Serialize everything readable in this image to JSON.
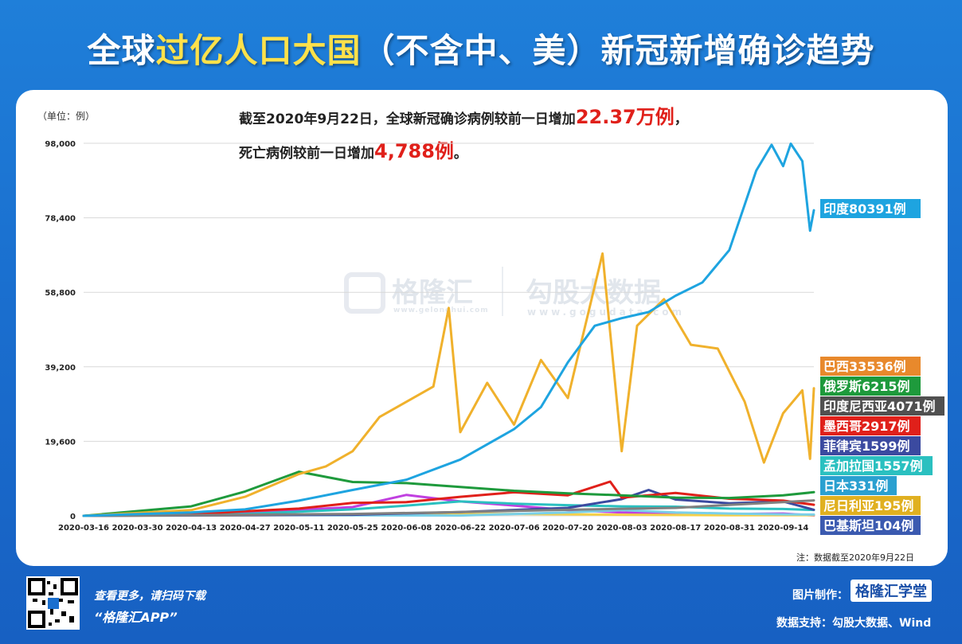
{
  "title": {
    "part1": "全球",
    "highlight": "过亿人口大国",
    "part2": "（不含中、美）新冠新增确诊趋势"
  },
  "unit_label": "（单位：例）",
  "summary": {
    "line1_prefix": "截至2020年9月22日，全球新冠确诊病例较前一日增加",
    "line1_value": "22.37万例",
    "line1_suffix": "，",
    "line2_prefix": "死亡病例较前一日增加",
    "line2_value": "4,788例",
    "line2_suffix": "。"
  },
  "note": "注：数据截至2020年9月22日",
  "footer": {
    "scan_text": "查看更多，请扫码下载",
    "app_text": "“格隆汇APP”",
    "made_by": "图片制作：",
    "brand": "格隆汇学堂",
    "data_support": "数据支持：勾股大数据、Wind"
  },
  "watermark": {
    "left": "格隆汇",
    "right": "勾股大数据",
    "left_url": "www.gelonghui.com",
    "right_url": "www.gogudata.com"
  },
  "colors": {
    "india": "#1ea4e0",
    "brazil": "#f0b12c",
    "russia": "#1e9a3c",
    "indonesia": "#808080",
    "mexico": "#e0201a",
    "philippines": "#3b4aa0",
    "bangladesh": "#2ac0c0",
    "japan": "#7ad0e8",
    "nigeria": "#f5d04a",
    "pakistan": "#c040e0"
  },
  "chart_data": {
    "type": "line",
    "title": "",
    "xlabel": "",
    "ylabel": "（单位：例）",
    "ylim": [
      0,
      98000
    ],
    "y_ticks": [
      "98,000",
      "78,400",
      "58,800",
      "39,200",
      "19,600",
      "0"
    ],
    "y_tick_values": [
      98000,
      78400,
      58800,
      39200,
      19600,
      0
    ],
    "x_ticks": [
      "2020-03-16",
      "2020-03-30",
      "2020-04-13",
      "2020-04-27",
      "2020-05-11",
      "2020-05-25",
      "2020-06-08",
      "2020-06-22",
      "2020-07-06",
      "2020-07-20",
      "2020-08-03",
      "2020-08-17",
      "2020-08-31",
      "2020-09-14"
    ],
    "x_range": [
      "2020-03-16",
      "2020-09-22"
    ],
    "grid": "horizontal",
    "series": [
      {
        "name": "印度",
        "label": "印度80391例",
        "color": "#1ea4e0",
        "points": [
          [
            "2020-03-16",
            0
          ],
          [
            "2020-04-13",
            900
          ],
          [
            "2020-04-27",
            1700
          ],
          [
            "2020-05-11",
            4000
          ],
          [
            "2020-05-25",
            6800
          ],
          [
            "2020-06-08",
            9500
          ],
          [
            "2020-06-22",
            14800
          ],
          [
            "2020-07-06",
            22800
          ],
          [
            "2020-07-13",
            28600
          ],
          [
            "2020-07-20",
            40400
          ],
          [
            "2020-07-27",
            50000
          ],
          [
            "2020-08-03",
            52000
          ],
          [
            "2020-08-10",
            53600
          ],
          [
            "2020-08-17",
            57900
          ],
          [
            "2020-08-24",
            61400
          ],
          [
            "2020-08-31",
            69900
          ],
          [
            "2020-09-07",
            90800
          ],
          [
            "2020-09-11",
            97600
          ],
          [
            "2020-09-14",
            92000
          ],
          [
            "2020-09-16",
            97900
          ],
          [
            "2020-09-19",
            93300
          ],
          [
            "2020-09-21",
            75000
          ],
          [
            "2020-09-22",
            80391
          ]
        ]
      },
      {
        "name": "巴西",
        "label": "巴西33536例",
        "color": "#f0b12c",
        "points": [
          [
            "2020-03-16",
            0
          ],
          [
            "2020-04-13",
            1500
          ],
          [
            "2020-04-27",
            5000
          ],
          [
            "2020-05-11",
            11000
          ],
          [
            "2020-05-18",
            13000
          ],
          [
            "2020-05-25",
            17000
          ],
          [
            "2020-06-01",
            26000
          ],
          [
            "2020-06-08",
            30000
          ],
          [
            "2020-06-15",
            34000
          ],
          [
            "2020-06-19",
            54700
          ],
          [
            "2020-06-22",
            22000
          ],
          [
            "2020-06-29",
            35000
          ],
          [
            "2020-07-06",
            24000
          ],
          [
            "2020-07-13",
            41000
          ],
          [
            "2020-07-20",
            31000
          ],
          [
            "2020-07-29",
            69000
          ],
          [
            "2020-08-03",
            17000
          ],
          [
            "2020-08-07",
            50000
          ],
          [
            "2020-08-14",
            57000
          ],
          [
            "2020-08-21",
            45000
          ],
          [
            "2020-08-28",
            44000
          ],
          [
            "2020-09-04",
            30000
          ],
          [
            "2020-09-09",
            14000
          ],
          [
            "2020-09-14",
            27000
          ],
          [
            "2020-09-19",
            33000
          ],
          [
            "2020-09-21",
            15000
          ],
          [
            "2020-09-22",
            33536
          ]
        ]
      },
      {
        "name": "俄罗斯",
        "label": "俄罗斯6215例",
        "color": "#1e9a3c",
        "points": [
          [
            "2020-03-16",
            0
          ],
          [
            "2020-04-13",
            2500
          ],
          [
            "2020-04-27",
            6400
          ],
          [
            "2020-05-11",
            11600
          ],
          [
            "2020-05-25",
            8900
          ],
          [
            "2020-06-08",
            8600
          ],
          [
            "2020-06-22",
            7600
          ],
          [
            "2020-07-06",
            6600
          ],
          [
            "2020-07-20",
            5900
          ],
          [
            "2020-08-03",
            5400
          ],
          [
            "2020-08-17",
            4800
          ],
          [
            "2020-08-31",
            4700
          ],
          [
            "2020-09-14",
            5400
          ],
          [
            "2020-09-22",
            6215
          ]
        ]
      },
      {
        "name": "印度尼西亚",
        "label": "印度尼西亚4071例",
        "color": "#808080",
        "points": [
          [
            "2020-03-16",
            0
          ],
          [
            "2020-04-27",
            300
          ],
          [
            "2020-05-25",
            500
          ],
          [
            "2020-06-22",
            1000
          ],
          [
            "2020-07-20",
            1600
          ],
          [
            "2020-08-17",
            2100
          ],
          [
            "2020-08-31",
            2900
          ],
          [
            "2020-09-14",
            3600
          ],
          [
            "2020-09-22",
            4071
          ]
        ]
      },
      {
        "name": "墨西哥",
        "label": "墨西哥2917例",
        "color": "#e0201a",
        "points": [
          [
            "2020-03-16",
            0
          ],
          [
            "2020-04-13",
            400
          ],
          [
            "2020-04-27",
            1200
          ],
          [
            "2020-05-11",
            1900
          ],
          [
            "2020-05-25",
            3400
          ],
          [
            "2020-06-08",
            3600
          ],
          [
            "2020-06-22",
            5000
          ],
          [
            "2020-07-06",
            6200
          ],
          [
            "2020-07-20",
            5400
          ],
          [
            "2020-07-31",
            9000
          ],
          [
            "2020-08-03",
            4800
          ],
          [
            "2020-08-17",
            6000
          ],
          [
            "2020-08-31",
            4500
          ],
          [
            "2020-09-14",
            4000
          ],
          [
            "2020-09-22",
            2917
          ]
        ]
      },
      {
        "name": "菲律宾",
        "label": "菲律宾1599例",
        "color": "#3b4aa0",
        "points": [
          [
            "2020-03-16",
            0
          ],
          [
            "2020-05-25",
            300
          ],
          [
            "2020-06-22",
            1000
          ],
          [
            "2020-07-20",
            2100
          ],
          [
            "2020-08-03",
            4400
          ],
          [
            "2020-08-10",
            6800
          ],
          [
            "2020-08-17",
            4300
          ],
          [
            "2020-08-31",
            3300
          ],
          [
            "2020-09-14",
            3800
          ],
          [
            "2020-09-22",
            1599
          ]
        ]
      },
      {
        "name": "孟加拉国",
        "label": "孟加拉国1557例",
        "color": "#2ac0c0",
        "points": [
          [
            "2020-03-16",
            0
          ],
          [
            "2020-04-27",
            500
          ],
          [
            "2020-05-25",
            1700
          ],
          [
            "2020-06-08",
            2700
          ],
          [
            "2020-06-22",
            3800
          ],
          [
            "2020-07-06",
            3200
          ],
          [
            "2020-07-20",
            2800
          ],
          [
            "2020-08-03",
            2500
          ],
          [
            "2020-08-17",
            2400
          ],
          [
            "2020-08-31",
            1900
          ],
          [
            "2020-09-14",
            1800
          ],
          [
            "2020-09-22",
            1557
          ]
        ]
      },
      {
        "name": "日本",
        "label": "日本331例",
        "color": "#7ad0e8",
        "points": [
          [
            "2020-03-16",
            0
          ],
          [
            "2020-04-13",
            500
          ],
          [
            "2020-04-27",
            200
          ],
          [
            "2020-06-22",
            80
          ],
          [
            "2020-07-20",
            900
          ],
          [
            "2020-08-03",
            1500
          ],
          [
            "2020-08-17",
            900
          ],
          [
            "2020-08-31",
            600
          ],
          [
            "2020-09-14",
            400
          ],
          [
            "2020-09-22",
            331
          ]
        ]
      },
      {
        "name": "尼日利亚",
        "label": "尼日利亚195例",
        "color": "#f5d04a",
        "points": [
          [
            "2020-03-16",
            0
          ],
          [
            "2020-05-11",
            200
          ],
          [
            "2020-06-08",
            400
          ],
          [
            "2020-07-06",
            500
          ],
          [
            "2020-08-03",
            300
          ],
          [
            "2020-08-31",
            150
          ],
          [
            "2020-09-22",
            195
          ]
        ]
      },
      {
        "name": "巴基斯坦",
        "label": "巴基斯坦104例",
        "color": "#c040e0",
        "points": [
          [
            "2020-03-16",
            0
          ],
          [
            "2020-04-27",
            800
          ],
          [
            "2020-05-25",
            2300
          ],
          [
            "2020-06-08",
            5500
          ],
          [
            "2020-06-22",
            3800
          ],
          [
            "2020-07-06",
            2700
          ],
          [
            "2020-07-20",
            1500
          ],
          [
            "2020-08-03",
            900
          ],
          [
            "2020-08-17",
            600
          ],
          [
            "2020-08-31",
            500
          ],
          [
            "2020-09-14",
            600
          ],
          [
            "2020-09-22",
            104
          ]
        ]
      }
    ]
  }
}
